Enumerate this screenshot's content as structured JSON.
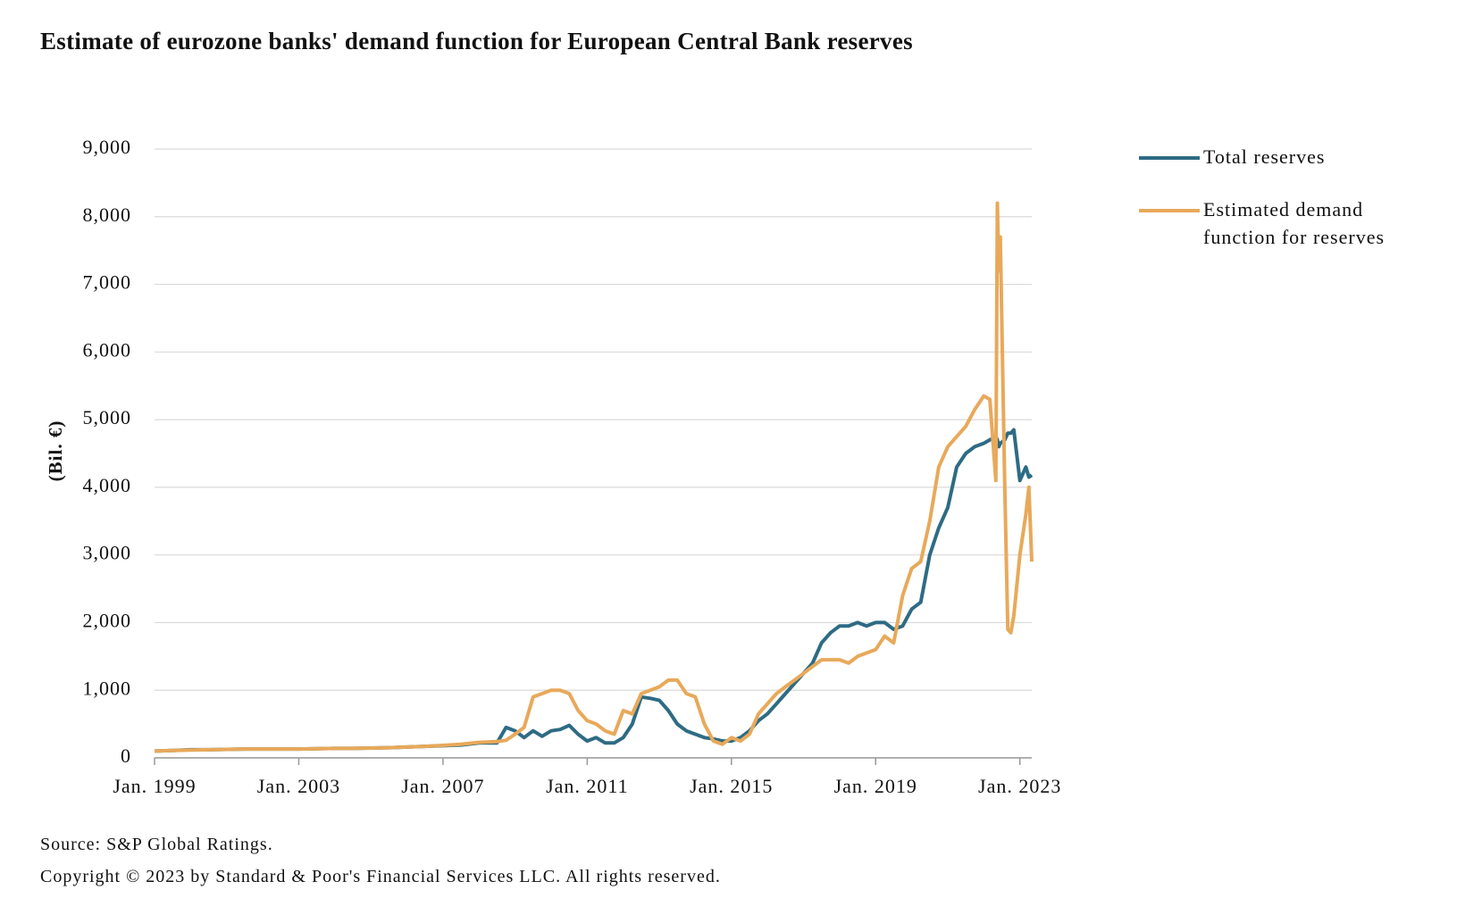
{
  "chart_data": {
    "type": "line",
    "title": "Estimate of eurozone banks' demand function for European Central Bank reserves",
    "y_label": "(Bil. €)",
    "source": "Source: S&P Global Ratings.",
    "copyright": "Copyright © 2023 by Standard & Poor's Financial Services LLC. All rights reserved.",
    "x": [
      1999,
      1999.5,
      2000,
      2000.5,
      2001,
      2001.5,
      2002,
      2002.5,
      2003,
      2003.5,
      2004,
      2004.5,
      2005,
      2005.5,
      2006,
      2006.5,
      2007,
      2007.5,
      2008,
      2008.5,
      2008.75,
      2009,
      2009.25,
      2009.5,
      2009.75,
      2010,
      2010.25,
      2010.5,
      2010.75,
      2011,
      2011.25,
      2011.5,
      2011.75,
      2012,
      2012.25,
      2012.5,
      2012.75,
      2013,
      2013.25,
      2013.5,
      2013.75,
      2014,
      2014.25,
      2014.5,
      2014.75,
      2015,
      2015.25,
      2015.5,
      2015.75,
      2016,
      2016.25,
      2016.5,
      2016.75,
      2017,
      2017.25,
      2017.5,
      2017.75,
      2018,
      2018.25,
      2018.5,
      2018.75,
      2019,
      2019.25,
      2019.5,
      2019.75,
      2020,
      2020.25,
      2020.5,
      2020.75,
      2021,
      2021.25,
      2021.5,
      2021.75,
      2022,
      2022.167,
      2022.333,
      2022.375,
      2022.417,
      2022.458,
      2022.583,
      2022.667,
      2022.75,
      2022.833,
      2023,
      2023.167,
      2023.25,
      2023.33
    ],
    "series": [
      {
        "name": "Total reserves",
        "color": "#2e6b84",
        "values": [
          100,
          110,
          120,
          120,
          125,
          130,
          130,
          130,
          130,
          135,
          140,
          140,
          145,
          150,
          160,
          170,
          180,
          190,
          220,
          220,
          450,
          400,
          300,
          400,
          320,
          400,
          420,
          480,
          350,
          250,
          300,
          220,
          220,
          300,
          500,
          900,
          880,
          850,
          700,
          500,
          400,
          350,
          300,
          280,
          250,
          250,
          300,
          400,
          550,
          650,
          800,
          950,
          1100,
          1250,
          1400,
          1700,
          1850,
          1950,
          1950,
          2000,
          1950,
          2000,
          2000,
          1900,
          1950,
          2200,
          2300,
          3000,
          3400,
          3700,
          4300,
          4500,
          4600,
          4650,
          4700,
          4750,
          4700,
          4600,
          4650,
          4700,
          4800,
          4800,
          4850,
          4100,
          4300,
          4150,
          4180
        ]
      },
      {
        "name": "Estimated demand function for reserves",
        "color": "#e8a95a",
        "values": [
          100,
          110,
          115,
          120,
          125,
          130,
          130,
          130,
          130,
          135,
          140,
          140,
          145,
          150,
          160,
          170,
          185,
          200,
          230,
          240,
          260,
          350,
          450,
          900,
          950,
          1000,
          1000,
          950,
          700,
          550,
          500,
          400,
          350,
          700,
          650,
          950,
          1000,
          1050,
          1150,
          1150,
          950,
          900,
          500,
          250,
          200,
          300,
          250,
          350,
          650,
          800,
          950,
          1050,
          1150,
          1250,
          1350,
          1450,
          1450,
          1450,
          1400,
          1500,
          1550,
          1600,
          1800,
          1700,
          2400,
          2800,
          2900,
          3500,
          4300,
          4600,
          4750,
          4900,
          5150,
          5350,
          5300,
          4100,
          8200,
          7200,
          7700,
          4000,
          1900,
          1850,
          2100,
          3000,
          3600,
          4000,
          2900
        ]
      }
    ],
    "xlim": [
      1999,
      2023.33
    ],
    "xticks": [
      {
        "value": 1999,
        "label": "Jan. 1999"
      },
      {
        "value": 2003,
        "label": "Jan. 2003"
      },
      {
        "value": 2007,
        "label": "Jan. 2007"
      },
      {
        "value": 2011,
        "label": "Jan. 2011"
      },
      {
        "value": 2015,
        "label": "Jan. 2015"
      },
      {
        "value": 2019,
        "label": "Jan. 2019"
      },
      {
        "value": 2023,
        "label": "Jan. 2023"
      }
    ],
    "ylim": [
      0,
      9000
    ],
    "yticks": [
      0,
      {
        "value": 1000,
        "label": "1,000"
      },
      {
        "value": 2000,
        "label": "2,000"
      },
      {
        "value": 3000,
        "label": "3,000"
      },
      {
        "value": 4000,
        "label": "4,000"
      },
      {
        "value": 5000,
        "label": "5,000"
      },
      {
        "value": 6000,
        "label": "6,000"
      },
      {
        "value": 7000,
        "label": "7,000"
      },
      {
        "value": 8000,
        "label": "8,000"
      },
      {
        "value": 9000,
        "label": "9,000"
      }
    ],
    "grid": true,
    "legend": "right"
  }
}
